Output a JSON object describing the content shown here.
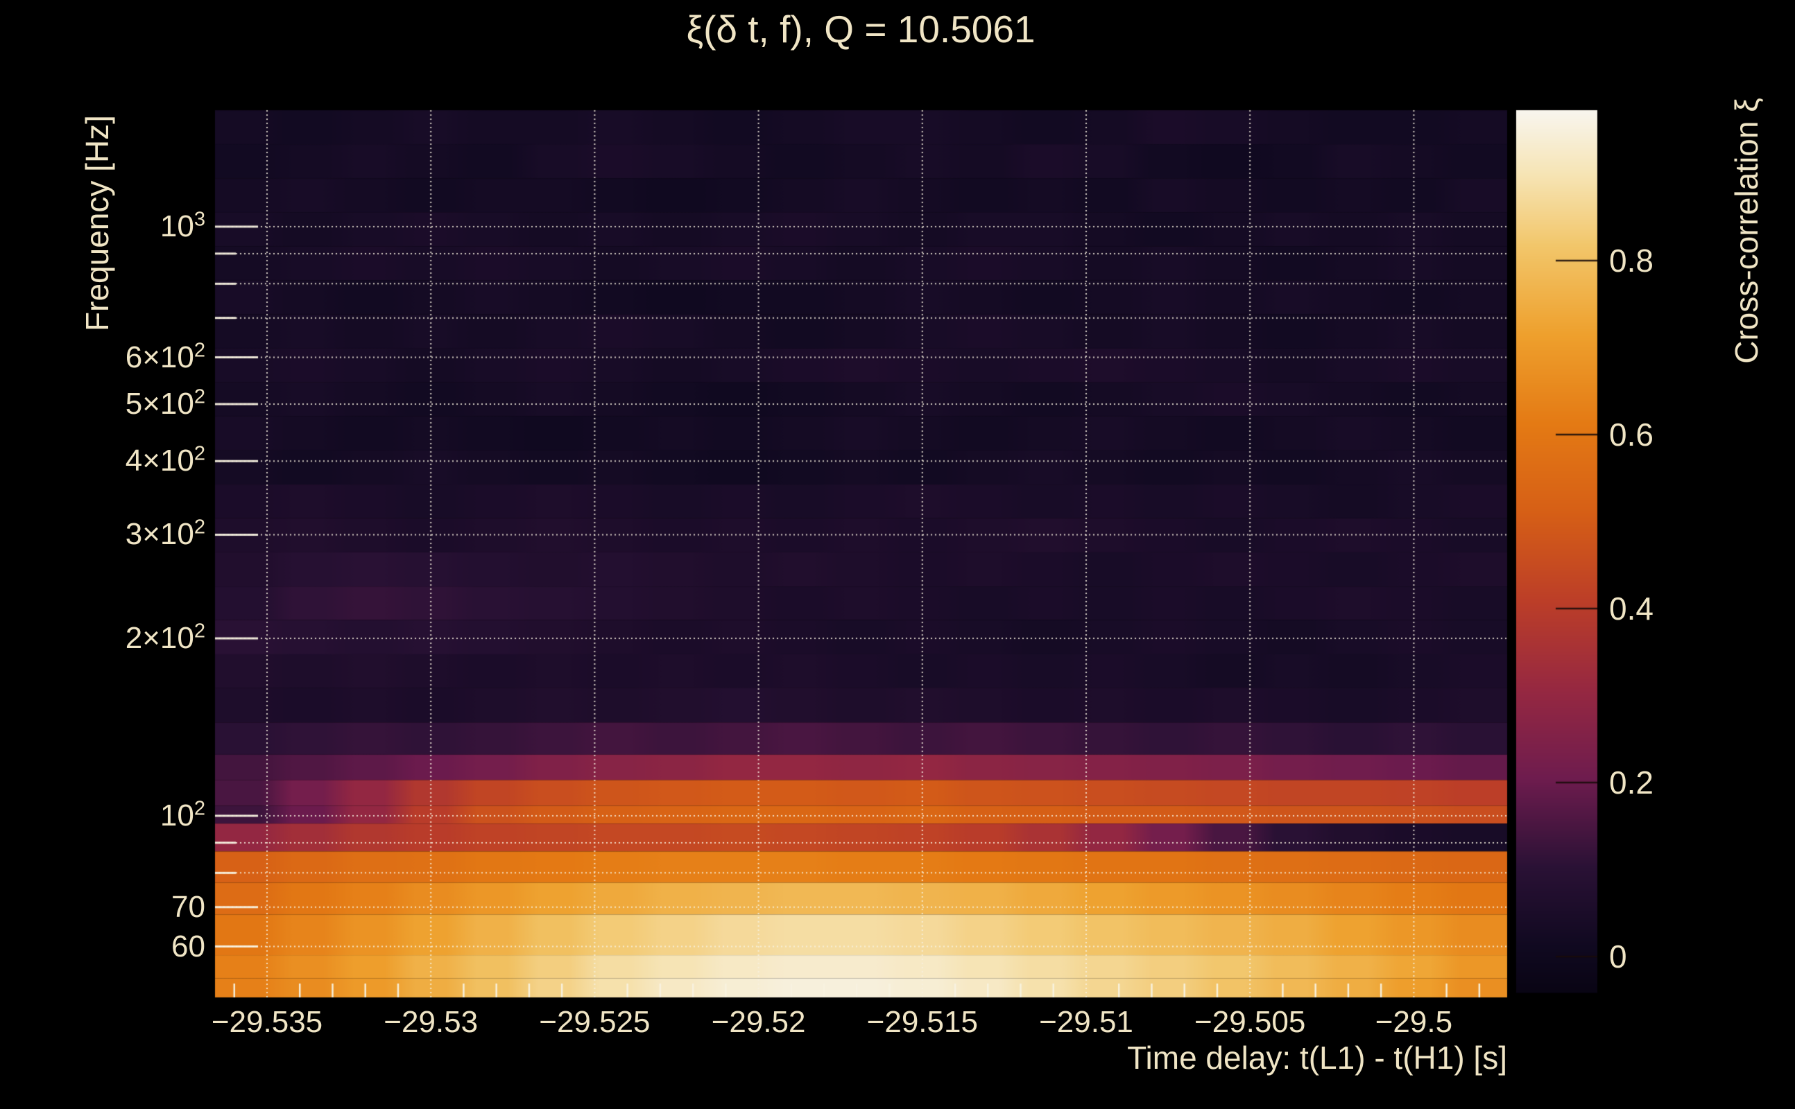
{
  "figure": {
    "background": "#000000",
    "text_color": "#f0e5c5"
  },
  "chart_data": {
    "type": "heatmap",
    "title": "ξ(δ t, f), Q = 10.5061",
    "xlabel": "Time delay: t(L1) - t(H1) [s]",
    "ylabel": "Frequency [Hz]",
    "x_range": [
      -29.5366,
      -29.4972
    ],
    "y_range_hz": [
      48,
      1576
    ],
    "y_scale": "log",
    "grid": "dotted",
    "grid_color": "#f5efdc",
    "x_ticks": [
      {
        "label": "−29.535",
        "value": -29.535
      },
      {
        "label": "−29.53",
        "value": -29.53
      },
      {
        "label": "−29.525",
        "value": -29.525
      },
      {
        "label": "−29.52",
        "value": -29.52
      },
      {
        "label": "−29.515",
        "value": -29.515
      },
      {
        "label": "−29.51",
        "value": -29.51
      },
      {
        "label": "−29.505",
        "value": -29.505
      },
      {
        "label": "−29.5",
        "value": -29.5
      }
    ],
    "x_minor_tick_step": 0.001,
    "y_ticks": [
      {
        "label": "10^3",
        "value": 1000
      },
      {
        "label": "6×10^2",
        "value": 600
      },
      {
        "label": "5×10^2",
        "value": 500
      },
      {
        "label": "4×10^2",
        "value": 400
      },
      {
        "label": "3×10^2",
        "value": 300
      },
      {
        "label": "2×10^2",
        "value": 200
      },
      {
        "label": "10^2",
        "value": 100
      },
      {
        "label": "70",
        "value": 70
      },
      {
        "label": "60",
        "value": 60
      }
    ],
    "y_gridlines_hz": [
      60,
      70,
      80,
      90,
      100,
      200,
      300,
      400,
      500,
      600,
      700,
      800,
      900,
      1000
    ],
    "colorbar": {
      "label": "Cross-correlation ξ",
      "value_range": [
        -0.04,
        0.97
      ],
      "ticks": [
        {
          "label": "0",
          "value": 0
        },
        {
          "label": "0.2",
          "value": 0.2
        },
        {
          "label": "0.4",
          "value": 0.4
        },
        {
          "label": "0.6",
          "value": 0.6
        },
        {
          "label": "0.8",
          "value": 0.8
        }
      ]
    },
    "colormap_stops": [
      [
        0.0,
        "#080412"
      ],
      [
        0.06,
        "#100920"
      ],
      [
        0.15,
        "#2a1135"
      ],
      [
        0.25,
        "#6e1c4e"
      ],
      [
        0.35,
        "#962841"
      ],
      [
        0.45,
        "#bc3e28"
      ],
      [
        0.55,
        "#d65f16"
      ],
      [
        0.65,
        "#e47a14"
      ],
      [
        0.75,
        "#eea02d"
      ],
      [
        0.85,
        "#f2c66a"
      ],
      [
        0.93,
        "#f6e4b4"
      ],
      [
        1.0,
        "#f8f5ec"
      ]
    ],
    "time_columns": 21,
    "rows": [
      {
        "f_top": 1576,
        "f_bottom": 1380,
        "values": [
          0.03,
          0.02,
          0.03,
          0.04,
          0.03,
          0.03,
          0.04,
          0.03,
          0.02,
          0.03,
          0.04,
          0.04,
          0.03,
          0.02,
          0.03,
          0.05,
          0.04,
          0.03,
          0.02,
          0.02,
          0.03
        ]
      },
      {
        "f_top": 1380,
        "f_bottom": 1208,
        "values": [
          0.02,
          0.03,
          0.04,
          0.03,
          0.02,
          0.04,
          0.05,
          0.04,
          0.03,
          0.02,
          0.03,
          0.04,
          0.03,
          0.05,
          0.04,
          0.02,
          0.01,
          0.02,
          0.04,
          0.03,
          0.02
        ]
      },
      {
        "f_top": 1208,
        "f_bottom": 1058,
        "values": [
          0.03,
          0.04,
          0.03,
          0.02,
          0.03,
          0.03,
          0.02,
          0.01,
          0.02,
          0.03,
          0.04,
          0.03,
          0.02,
          0.03,
          0.02,
          0.04,
          0.03,
          0.02,
          0.03,
          0.02,
          0.04
        ]
      },
      {
        "f_top": 1058,
        "f_bottom": 926,
        "values": [
          0.04,
          0.03,
          0.04,
          0.05,
          0.04,
          0.03,
          0.04,
          0.03,
          0.04,
          0.05,
          0.04,
          0.03,
          0.04,
          0.04,
          0.03,
          0.02,
          0.03,
          0.04,
          0.03,
          0.04,
          0.03
        ]
      },
      {
        "f_top": 926,
        "f_bottom": 811,
        "values": [
          0.03,
          0.04,
          0.05,
          0.04,
          0.05,
          0.04,
          0.03,
          0.04,
          0.05,
          0.04,
          0.03,
          0.04,
          0.05,
          0.04,
          0.03,
          0.04,
          0.03,
          0.02,
          0.03,
          0.04,
          0.03
        ]
      },
      {
        "f_top": 811,
        "f_bottom": 710,
        "values": [
          0.04,
          0.03,
          0.02,
          0.03,
          0.04,
          0.03,
          0.02,
          0.01,
          0.02,
          0.02,
          0.03,
          0.04,
          0.03,
          0.02,
          0.03,
          0.04,
          0.03,
          0.04,
          0.03,
          0.02,
          0.03
        ]
      },
      {
        "f_top": 710,
        "f_bottom": 621,
        "values": [
          0.03,
          0.04,
          0.03,
          0.04,
          0.03,
          0.04,
          0.05,
          0.04,
          0.03,
          0.02,
          0.03,
          0.04,
          0.05,
          0.04,
          0.03,
          0.04,
          0.03,
          0.02,
          0.03,
          0.04,
          0.03
        ]
      },
      {
        "f_top": 621,
        "f_bottom": 544,
        "values": [
          0.04,
          0.05,
          0.04,
          0.03,
          0.04,
          0.05,
          0.04,
          0.03,
          0.04,
          0.05,
          0.06,
          0.05,
          0.04,
          0.05,
          0.06,
          0.05,
          0.04,
          0.03,
          0.04,
          0.05,
          0.04
        ]
      },
      {
        "f_top": 544,
        "f_bottom": 477,
        "values": [
          0.03,
          0.04,
          0.03,
          0.02,
          0.03,
          0.04,
          0.03,
          0.02,
          0.01,
          0.02,
          0.03,
          0.04,
          0.03,
          0.02,
          0.03,
          0.04,
          0.05,
          0.04,
          0.03,
          0.02,
          0.03
        ]
      },
      {
        "f_top": 477,
        "f_bottom": 417,
        "values": [
          0.04,
          0.03,
          0.02,
          0.03,
          0.02,
          0.01,
          0.02,
          0.03,
          0.02,
          0.03,
          0.04,
          0.03,
          0.02,
          0.03,
          0.04,
          0.03,
          0.02,
          0.03,
          0.04,
          0.03,
          0.02
        ]
      },
      {
        "f_top": 417,
        "f_bottom": 365,
        "values": [
          0.03,
          0.02,
          0.03,
          0.04,
          0.03,
          0.02,
          0.03,
          0.02,
          0.01,
          0.02,
          0.03,
          0.02,
          0.03,
          0.04,
          0.03,
          0.02,
          0.03,
          0.02,
          0.03,
          0.04,
          0.03
        ]
      },
      {
        "f_top": 365,
        "f_bottom": 320,
        "values": [
          0.05,
          0.06,
          0.05,
          0.04,
          0.05,
          0.06,
          0.05,
          0.04,
          0.05,
          0.04,
          0.05,
          0.06,
          0.05,
          0.04,
          0.05,
          0.04,
          0.05,
          0.04,
          0.03,
          0.04,
          0.05
        ]
      },
      {
        "f_top": 320,
        "f_bottom": 280,
        "values": [
          0.06,
          0.07,
          0.06,
          0.05,
          0.06,
          0.07,
          0.06,
          0.05,
          0.06,
          0.05,
          0.06,
          0.05,
          0.06,
          0.07,
          0.06,
          0.05,
          0.04,
          0.05,
          0.06,
          0.05,
          0.04
        ]
      },
      {
        "f_top": 280,
        "f_bottom": 245,
        "values": [
          0.07,
          0.09,
          0.1,
          0.09,
          0.08,
          0.07,
          0.08,
          0.07,
          0.06,
          0.07,
          0.06,
          0.05,
          0.06,
          0.05,
          0.04,
          0.05,
          0.06,
          0.05,
          0.04,
          0.05,
          0.06
        ]
      },
      {
        "f_top": 245,
        "f_bottom": 215,
        "values": [
          0.08,
          0.11,
          0.12,
          0.11,
          0.1,
          0.09,
          0.08,
          0.07,
          0.06,
          0.05,
          0.06,
          0.05,
          0.04,
          0.05,
          0.04,
          0.05,
          0.04,
          0.05,
          0.06,
          0.05,
          0.04
        ]
      },
      {
        "f_top": 215,
        "f_bottom": 188,
        "values": [
          0.1,
          0.09,
          0.08,
          0.09,
          0.08,
          0.07,
          0.06,
          0.05,
          0.06,
          0.05,
          0.04,
          0.05,
          0.04,
          0.03,
          0.04,
          0.05,
          0.04,
          0.03,
          0.04,
          0.05,
          0.04
        ]
      },
      {
        "f_top": 188,
        "f_bottom": 165,
        "values": [
          0.07,
          0.06,
          0.07,
          0.06,
          0.05,
          0.06,
          0.05,
          0.06,
          0.05,
          0.06,
          0.05,
          0.04,
          0.05,
          0.04,
          0.05,
          0.04,
          0.03,
          0.04,
          0.03,
          0.04,
          0.05
        ]
      },
      {
        "f_top": 165,
        "f_bottom": 144,
        "values": [
          0.06,
          0.05,
          0.06,
          0.05,
          0.06,
          0.07,
          0.06,
          0.07,
          0.08,
          0.07,
          0.06,
          0.07,
          0.06,
          0.05,
          0.06,
          0.05,
          0.06,
          0.05,
          0.04,
          0.05,
          0.06
        ]
      },
      {
        "f_top": 144,
        "f_bottom": 127,
        "values": [
          0.1,
          0.11,
          0.12,
          0.11,
          0.12,
          0.13,
          0.14,
          0.13,
          0.14,
          0.15,
          0.14,
          0.13,
          0.14,
          0.13,
          0.12,
          0.11,
          0.12,
          0.11,
          0.1,
          0.11,
          0.1
        ]
      },
      {
        "f_top": 127,
        "f_bottom": 115,
        "values": [
          0.14,
          0.16,
          0.18,
          0.2,
          0.22,
          0.25,
          0.27,
          0.28,
          0.3,
          0.3,
          0.29,
          0.3,
          0.28,
          0.27,
          0.26,
          0.25,
          0.24,
          0.22,
          0.21,
          0.2,
          0.19
        ]
      },
      {
        "f_top": 115,
        "f_bottom": 104,
        "values": [
          0.15,
          0.22,
          0.3,
          0.38,
          0.43,
          0.46,
          0.48,
          0.49,
          0.5,
          0.5,
          0.49,
          0.5,
          0.48,
          0.47,
          0.46,
          0.45,
          0.44,
          0.43,
          0.43,
          0.42,
          0.41
        ]
      },
      {
        "f_top": 104,
        "f_bottom": 97,
        "values": [
          0.13,
          0.2,
          0.3,
          0.4,
          0.47,
          0.5,
          0.52,
          0.53,
          0.54,
          0.54,
          0.53,
          0.54,
          0.52,
          0.51,
          0.5,
          0.5,
          0.49,
          0.48,
          0.48,
          0.47,
          0.46
        ]
      },
      {
        "f_top": 97,
        "f_bottom": 87,
        "values": [
          0.3,
          0.34,
          0.38,
          0.4,
          0.42,
          0.43,
          0.44,
          0.44,
          0.45,
          0.44,
          0.43,
          0.42,
          0.4,
          0.36,
          0.3,
          0.22,
          0.15,
          0.1,
          0.07,
          0.05,
          0.04
        ]
      },
      {
        "f_top": 87,
        "f_bottom": 77,
        "values": [
          0.52,
          0.55,
          0.57,
          0.58,
          0.6,
          0.61,
          0.62,
          0.63,
          0.63,
          0.63,
          0.62,
          0.62,
          0.61,
          0.6,
          0.59,
          0.59,
          0.58,
          0.57,
          0.56,
          0.55,
          0.54
        ]
      },
      {
        "f_top": 77,
        "f_bottom": 68,
        "values": [
          0.56,
          0.6,
          0.63,
          0.66,
          0.69,
          0.72,
          0.74,
          0.76,
          0.77,
          0.78,
          0.78,
          0.77,
          0.76,
          0.74,
          0.72,
          0.7,
          0.68,
          0.66,
          0.64,
          0.62,
          0.6
        ]
      },
      {
        "f_top": 68,
        "f_bottom": 58,
        "values": [
          0.6,
          0.64,
          0.68,
          0.72,
          0.76,
          0.8,
          0.83,
          0.85,
          0.87,
          0.88,
          0.88,
          0.87,
          0.85,
          0.83,
          0.81,
          0.79,
          0.77,
          0.75,
          0.72,
          0.69,
          0.66
        ]
      },
      {
        "f_top": 58,
        "f_bottom": 53,
        "values": [
          0.63,
          0.67,
          0.71,
          0.76,
          0.8,
          0.84,
          0.88,
          0.9,
          0.92,
          0.93,
          0.93,
          0.92,
          0.9,
          0.88,
          0.86,
          0.84,
          0.82,
          0.79,
          0.76,
          0.73,
          0.69
        ]
      },
      {
        "f_top": 53,
        "f_bottom": 48,
        "values": [
          0.63,
          0.66,
          0.7,
          0.75,
          0.8,
          0.85,
          0.89,
          0.92,
          0.94,
          0.95,
          0.95,
          0.94,
          0.92,
          0.89,
          0.86,
          0.84,
          0.81,
          0.78,
          0.75,
          0.71,
          0.67
        ]
      }
    ]
  }
}
